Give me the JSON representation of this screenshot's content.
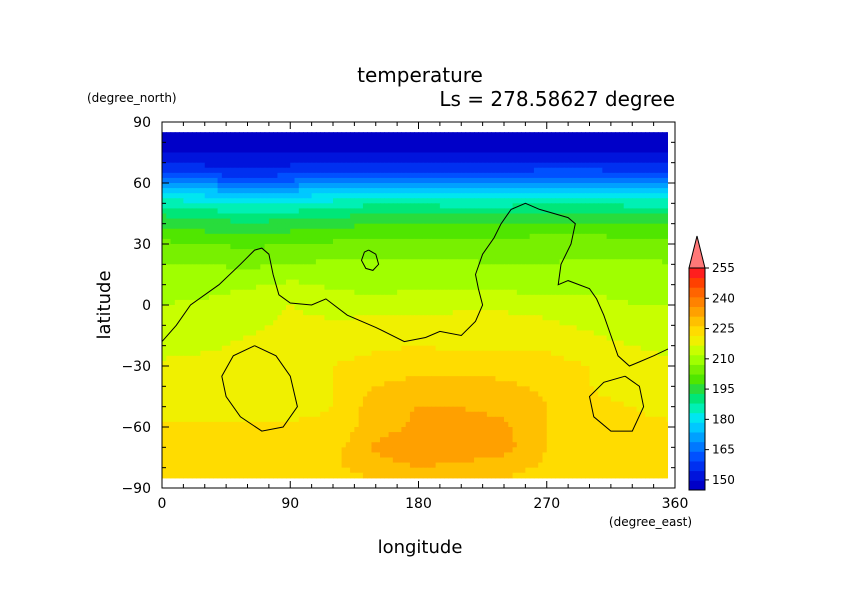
{
  "chart_data": {
    "type": "heatmap",
    "title": "temperature",
    "subtitle": "Ls = 278.58627 degree",
    "xlabel": "longitude",
    "ylabel": "latitude",
    "xunit": "(degree_east)",
    "yunit": "(degree_north)",
    "xlim": [
      0,
      360
    ],
    "ylim": [
      -90,
      90
    ],
    "xticks": [
      "0",
      "90",
      "180",
      "270",
      "360"
    ],
    "yticks": [
      "90",
      "60",
      "30",
      "0",
      "−30",
      "−60",
      "−90"
    ],
    "colorbar": {
      "labels": [
        "255",
        "240",
        "225",
        "210",
        "195",
        "180",
        "165",
        "150"
      ],
      "levels": [
        145,
        150,
        155,
        160,
        165,
        170,
        175,
        180,
        185,
        190,
        195,
        200,
        205,
        210,
        215,
        220,
        225,
        230,
        235,
        240,
        245,
        250,
        255,
        260
      ],
      "colors": [
        "#0000c8",
        "#0014dc",
        "#0030f0",
        "#0050ff",
        "#0078ff",
        "#00a0ff",
        "#00c8ff",
        "#00e6f0",
        "#00f0b4",
        "#00e678",
        "#28dc3c",
        "#50e600",
        "#78f000",
        "#a0ff00",
        "#c8ff00",
        "#f0f000",
        "#ffdc00",
        "#ffc000",
        "#ffa000",
        "#ff8200",
        "#ff6400",
        "#ff4000",
        "#ff1e1e",
        "#ff7878"
      ]
    },
    "field": {
      "lon": [
        0,
        30,
        60,
        90,
        120,
        150,
        180,
        210,
        240,
        270,
        300,
        330,
        360
      ],
      "lat": [
        85,
        75,
        65,
        60,
        55,
        50,
        45,
        40,
        35,
        30,
        20,
        10,
        0,
        -10,
        -20,
        -30,
        -40,
        -50,
        -60,
        -70,
        -80,
        -85
      ],
      "values": [
        [
          148,
          148,
          148,
          148,
          148,
          148,
          148,
          148,
          148,
          148,
          148,
          148,
          148
        ],
        [
          150,
          150,
          150,
          150,
          150,
          150,
          150,
          150,
          150,
          150,
          150,
          150,
          150
        ],
        [
          160,
          158,
          157,
          158,
          160,
          161,
          161,
          160,
          160,
          162,
          162,
          160,
          160
        ],
        [
          170,
          168,
          166,
          167,
          169,
          171,
          171,
          170,
          170,
          172,
          172,
          170,
          170
        ],
        [
          180,
          178,
          176,
          177,
          179,
          181,
          181,
          180,
          180,
          182,
          182,
          180,
          180
        ],
        [
          188,
          186,
          184,
          185,
          187,
          189,
          189,
          188,
          188,
          190,
          190,
          188,
          188
        ],
        [
          194,
          192,
          190,
          191,
          193,
          195,
          195,
          194,
          194,
          196,
          196,
          194,
          194
        ],
        [
          199,
          197,
          196,
          197,
          198,
          200,
          200,
          199,
          199,
          201,
          201,
          199,
          199
        ],
        [
          203,
          201,
          200,
          201,
          202,
          204,
          204,
          203,
          203,
          205,
          205,
          203,
          203
        ],
        [
          206,
          205,
          204,
          205,
          206,
          207,
          207,
          206,
          206,
          208,
          208,
          206,
          206
        ],
        [
          210,
          210,
          209,
          210,
          211,
          211,
          211,
          211,
          210,
          210,
          211,
          212,
          210
        ],
        [
          213,
          213,
          214,
          216,
          214,
          213,
          214,
          214,
          213,
          212,
          214,
          214,
          213
        ],
        [
          215,
          216,
          218,
          220,
          218,
          217,
          218,
          219,
          219,
          218,
          216,
          215,
          215
        ],
        [
          216,
          217,
          219,
          221,
          221,
          222,
          222,
          222,
          222,
          221,
          219,
          217,
          216
        ],
        [
          218,
          219,
          221,
          222,
          223,
          224,
          225,
          224,
          224,
          224,
          222,
          220,
          218
        ],
        [
          221,
          222,
          222,
          223,
          225,
          227,
          228,
          228,
          228,
          227,
          225,
          223,
          221
        ],
        [
          222,
          223,
          223,
          223,
          225,
          230,
          232,
          232,
          231,
          229,
          225,
          223,
          222
        ],
        [
          223,
          223,
          223,
          223,
          225,
          233,
          235,
          235,
          234,
          230,
          226,
          225,
          223
        ],
        [
          226,
          226,
          226,
          226,
          226,
          233,
          236,
          236,
          236,
          230,
          227,
          226,
          226
        ],
        [
          227,
          227,
          227,
          227,
          228,
          236,
          238,
          238,
          237,
          230,
          228,
          227,
          227
        ],
        [
          227,
          227,
          227,
          227,
          229,
          233,
          235,
          234,
          232,
          229,
          228,
          227,
          227
        ],
        [
          227,
          227,
          227,
          227,
          228,
          230,
          231,
          231,
          230,
          228,
          227,
          227,
          227
        ]
      ]
    },
    "contours": [
      [
        [
          0,
          -18
        ],
        [
          10,
          -10
        ],
        [
          20,
          0
        ],
        [
          40,
          10
        ],
        [
          55,
          20
        ],
        [
          65,
          27
        ],
        [
          70,
          28
        ],
        [
          75,
          25
        ],
        [
          78,
          15
        ],
        [
          82,
          5
        ],
        [
          90,
          1
        ],
        [
          105,
          0
        ],
        [
          115,
          3
        ],
        [
          130,
          -5
        ],
        [
          150,
          -11
        ],
        [
          170,
          -18
        ],
        [
          185,
          -16
        ],
        [
          195,
          -13
        ],
        [
          210,
          -15
        ],
        [
          220,
          -8
        ],
        [
          225,
          0
        ],
        [
          222,
          8
        ],
        [
          220,
          15
        ],
        [
          225,
          25
        ],
        [
          233,
          33
        ],
        [
          238,
          40
        ],
        [
          245,
          47
        ],
        [
          255,
          50
        ],
        [
          265,
          47
        ],
        [
          275,
          45
        ],
        [
          285,
          43
        ],
        [
          290,
          40
        ],
        [
          287,
          30
        ],
        [
          280,
          20
        ],
        [
          278,
          10
        ],
        [
          285,
          12
        ],
        [
          300,
          8
        ],
        [
          305,
          3
        ],
        [
          310,
          -5
        ],
        [
          315,
          -15
        ],
        [
          320,
          -25
        ],
        [
          328,
          -30
        ],
        [
          335,
          -28
        ],
        [
          345,
          -25
        ],
        [
          360,
          -20
        ]
      ],
      [
        [
          145,
          27
        ],
        [
          150,
          25
        ],
        [
          152,
          20
        ],
        [
          148,
          17
        ],
        [
          143,
          18
        ],
        [
          140,
          22
        ],
        [
          142,
          26
        ],
        [
          145,
          27
        ]
      ],
      [
        [
          65,
          -20
        ],
        [
          80,
          -25
        ],
        [
          90,
          -35
        ],
        [
          95,
          -50
        ],
        [
          85,
          -60
        ],
        [
          70,
          -62
        ],
        [
          55,
          -55
        ],
        [
          45,
          -45
        ],
        [
          42,
          -35
        ],
        [
          50,
          -25
        ],
        [
          65,
          -20
        ]
      ],
      [
        [
          325,
          -35
        ],
        [
          335,
          -40
        ],
        [
          338,
          -50
        ],
        [
          330,
          -62
        ],
        [
          315,
          -62
        ],
        [
          303,
          -55
        ],
        [
          300,
          -45
        ],
        [
          310,
          -38
        ],
        [
          325,
          -35
        ]
      ]
    ]
  }
}
